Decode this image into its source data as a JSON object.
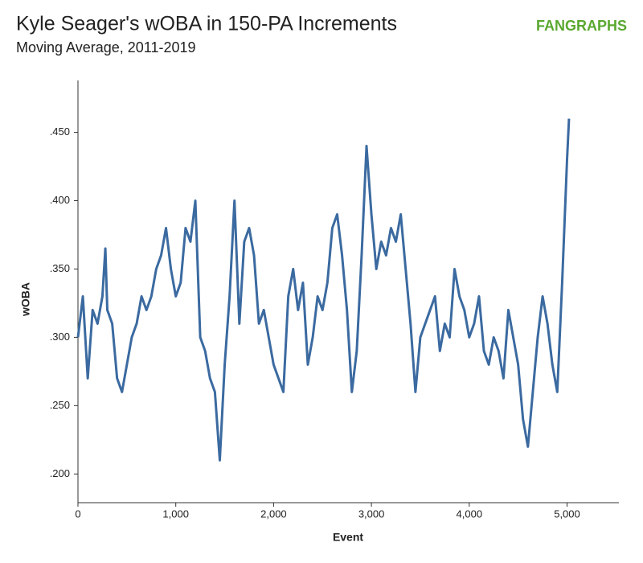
{
  "chart_data": {
    "type": "line",
    "title": "Kyle Seager's wOBA in 150-PA Increments",
    "subtitle": "Moving Average, 2011-2019",
    "logo": "FANGRAPHS",
    "xlabel": "Event",
    "ylabel": "wOBA",
    "xlim": [
      0,
      5530
    ],
    "ylim": [
      0.179,
      0.488
    ],
    "xticks": [
      0,
      {
        "value": 1000,
        "label": "1,000"
      },
      {
        "value": 2000,
        "label": "2,000"
      },
      {
        "value": 3000,
        "label": "3,000"
      },
      {
        "value": 4000,
        "label": "4,000"
      },
      {
        "value": 5000,
        "label": "5,000"
      }
    ],
    "yticks": [
      {
        "value": 0.2,
        "label": ".200"
      },
      {
        "value": 0.25,
        "label": ".250"
      },
      {
        "value": 0.3,
        "label": ".300"
      },
      {
        "value": 0.35,
        "label": ".350"
      },
      {
        "value": 0.4,
        "label": ".400"
      },
      {
        "value": 0.45,
        "label": ".450"
      }
    ],
    "x": [
      0,
      50,
      100,
      150,
      200,
      250,
      280,
      300,
      350,
      400,
      450,
      500,
      550,
      600,
      650,
      700,
      750,
      800,
      850,
      900,
      950,
      1000,
      1050,
      1100,
      1150,
      1200,
      1250,
      1300,
      1350,
      1400,
      1450,
      1500,
      1550,
      1600,
      1650,
      1700,
      1750,
      1800,
      1850,
      1900,
      1950,
      2000,
      2050,
      2100,
      2150,
      2200,
      2250,
      2300,
      2350,
      2400,
      2450,
      2500,
      2550,
      2600,
      2650,
      2700,
      2750,
      2800,
      2850,
      2900,
      2950,
      3000,
      3050,
      3100,
      3150,
      3200,
      3250,
      3300,
      3350,
      3400,
      3450,
      3500,
      3550,
      3600,
      3650,
      3700,
      3750,
      3800,
      3850,
      3900,
      3950,
      4000,
      4050,
      4100,
      4150,
      4200,
      4250,
      4300,
      4350,
      4400,
      4450,
      4500,
      4550,
      4600,
      4650,
      4700,
      4750,
      4800,
      4850,
      4900,
      4950,
      5000,
      5020
    ],
    "series": [
      {
        "name": "wOBA",
        "color": "#3b6aa0",
        "values": [
          0.3,
          0.33,
          0.27,
          0.32,
          0.31,
          0.33,
          0.365,
          0.32,
          0.31,
          0.27,
          0.26,
          0.28,
          0.3,
          0.31,
          0.33,
          0.32,
          0.33,
          0.35,
          0.36,
          0.38,
          0.35,
          0.33,
          0.34,
          0.38,
          0.37,
          0.4,
          0.3,
          0.29,
          0.27,
          0.26,
          0.21,
          0.28,
          0.33,
          0.4,
          0.31,
          0.37,
          0.38,
          0.36,
          0.31,
          0.32,
          0.3,
          0.28,
          0.27,
          0.26,
          0.33,
          0.35,
          0.32,
          0.34,
          0.28,
          0.3,
          0.33,
          0.32,
          0.34,
          0.38,
          0.39,
          0.36,
          0.32,
          0.26,
          0.29,
          0.36,
          0.44,
          0.39,
          0.35,
          0.37,
          0.36,
          0.38,
          0.37,
          0.39,
          0.35,
          0.31,
          0.26,
          0.3,
          0.31,
          0.32,
          0.33,
          0.29,
          0.31,
          0.3,
          0.35,
          0.33,
          0.32,
          0.3,
          0.31,
          0.33,
          0.29,
          0.28,
          0.3,
          0.29,
          0.27,
          0.32,
          0.3,
          0.28,
          0.24,
          0.22,
          0.26,
          0.3,
          0.33,
          0.31,
          0.28,
          0.26,
          0.34,
          0.43,
          0.46
        ]
      }
    ]
  }
}
